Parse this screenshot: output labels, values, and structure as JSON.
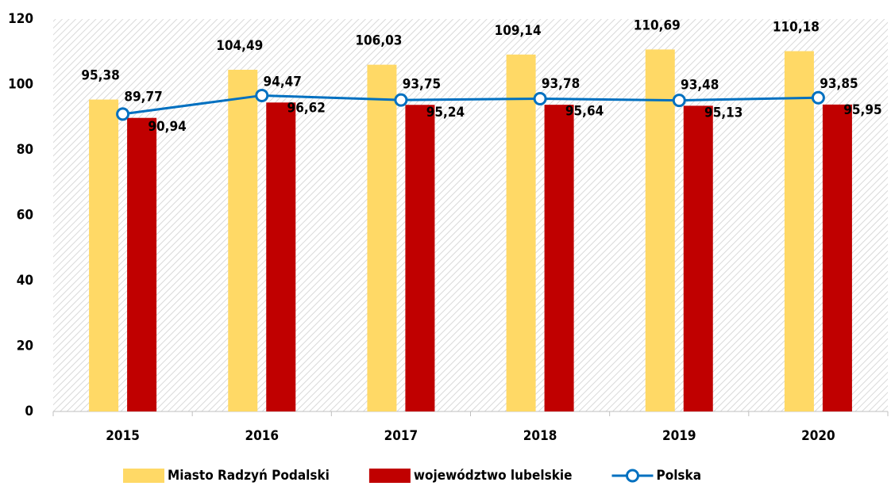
{
  "chart_data": {
    "type": "bar",
    "categories": [
      "2015",
      "2016",
      "2017",
      "2018",
      "2019",
      "2020"
    ],
    "series": [
      {
        "name": "Miasto Radzyń Podalski",
        "color": "#ffd966",
        "type": "bar",
        "values": [
          95.38,
          104.49,
          106.03,
          109.14,
          110.69,
          110.18
        ],
        "value_labels": [
          "95,38",
          "104,49",
          "106,03",
          "109,14",
          "110,69",
          "110,18"
        ]
      },
      {
        "name": "województwo lubelskie",
        "color": "#c00000",
        "type": "bar",
        "values": [
          89.77,
          94.47,
          93.75,
          93.78,
          93.48,
          93.85
        ],
        "value_labels": [
          "89,77",
          "94,47",
          "93,75",
          "93,78",
          "93,48",
          "93,85"
        ]
      },
      {
        "name": "Polska",
        "color": "#0070c0",
        "type": "line",
        "values": [
          90.94,
          96.62,
          95.24,
          95.64,
          95.13,
          95.95
        ],
        "value_labels": [
          "90,94",
          "96,62",
          "95,24",
          "95,64",
          "95,13",
          "95,95"
        ]
      }
    ],
    "ylim": [
      0,
      120
    ],
    "yticks": [
      0,
      20,
      40,
      60,
      80,
      100,
      120
    ],
    "grid": false,
    "legend": "bottom"
  }
}
